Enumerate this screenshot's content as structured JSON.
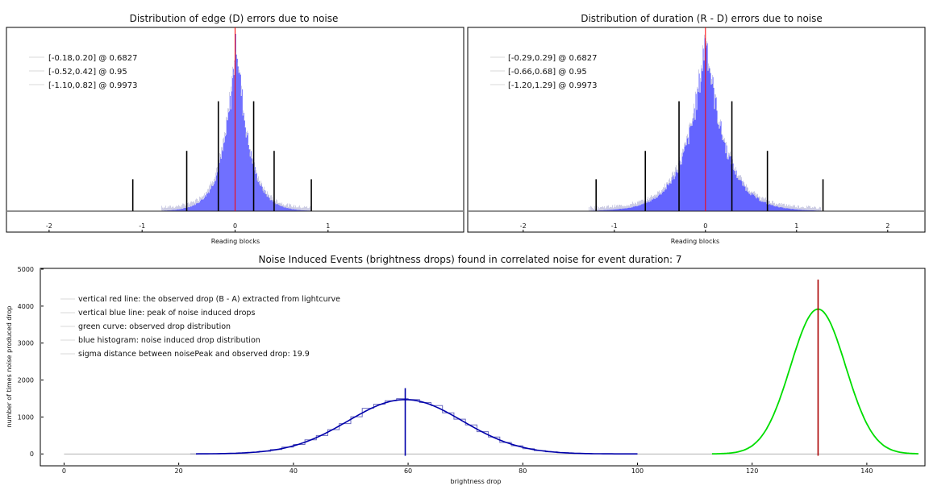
{
  "chart_data": [
    {
      "type": "bar",
      "title": "Distribution of edge (D) errors due to noise",
      "xlabel": "Reading blocks",
      "ylabel": "",
      "xlim": [
        -2.45,
        2.45
      ],
      "x_ticks": [
        -2,
        -1,
        0,
        1
      ],
      "histogram": {
        "center": 0.01,
        "sigma": 0.19,
        "peak": 1.0,
        "color": "#6464ff",
        "shape": "laplacian"
      },
      "center_line": {
        "x": 0.0,
        "color": "#ff0000"
      },
      "markers": [
        {
          "x": -0.18,
          "height": 0.62
        },
        {
          "x": 0.2,
          "height": 0.62
        },
        {
          "x": -0.52,
          "height": 0.34
        },
        {
          "x": 0.42,
          "height": 0.34
        },
        {
          "x": -1.1,
          "height": 0.18
        },
        {
          "x": 0.82,
          "height": 0.18
        }
      ],
      "legend": [
        {
          "label": "[-0.18,0.20] @ 0.6827"
        },
        {
          "label": "[-0.52,0.42] @ 0.95"
        },
        {
          "label": "[-1.10,0.82] @ 0.9973"
        }
      ],
      "legend_position": "top-left",
      "grid": false
    },
    {
      "type": "bar",
      "title": "Distribution of duration (R - D) errors due to noise",
      "xlabel": "Reading blocks",
      "ylabel": "",
      "xlim": [
        -2.6,
        2.4
      ],
      "x_ticks": [
        -2,
        -1,
        0,
        1,
        2
      ],
      "histogram": {
        "center": 0.0,
        "sigma": 0.3,
        "peak": 1.0,
        "color": "#6464ff",
        "shape": "laplacian"
      },
      "center_line": {
        "x": 0.0,
        "color": "#ff0000"
      },
      "markers": [
        {
          "x": -0.29,
          "height": 0.62
        },
        {
          "x": 0.29,
          "height": 0.62
        },
        {
          "x": -0.66,
          "height": 0.34
        },
        {
          "x": 0.68,
          "height": 0.34
        },
        {
          "x": -1.2,
          "height": 0.18
        },
        {
          "x": 1.29,
          "height": 0.18
        }
      ],
      "legend": [
        {
          "label": "[-0.29,0.29] @ 0.6827"
        },
        {
          "label": "[-0.66,0.68] @ 0.95"
        },
        {
          "label": "[-1.20,1.29] @ 0.9973"
        }
      ],
      "legend_position": "top-left",
      "grid": false
    },
    {
      "type": "line",
      "title": "Noise Induced Events (brightness drops) found in correlated noise for event duration: 7",
      "xlabel": "brightness drop",
      "ylabel": "number of times noise produced drop",
      "xlim": [
        -4,
        150
      ],
      "ylim": [
        -300,
        5000
      ],
      "x_ticks": [
        0,
        20,
        40,
        60,
        80,
        100,
        120,
        140
      ],
      "y_ticks": [
        0,
        1000,
        2000,
        3000,
        4000,
        5000
      ],
      "series": [
        {
          "kind": "histogram",
          "center": 59.5,
          "sigma": 10.0,
          "peak": 1470,
          "range": [
            23,
            100
          ],
          "color": "#0000aa"
        },
        {
          "kind": "curve",
          "center": 131.5,
          "sigma": 4.8,
          "peak": 3920,
          "range": [
            113,
            149
          ],
          "color": "#00dd00"
        }
      ],
      "vlines": [
        {
          "x": 59.5,
          "ymin": -50,
          "ymax": 1780,
          "color": "#0000aa"
        },
        {
          "x": 131.5,
          "ymin": -50,
          "ymax": 4720,
          "color": "#aa0000"
        }
      ],
      "legend": [
        {
          "label": "vertical red line: the observed drop (B - A) extracted from lightcurve"
        },
        {
          "label": "vertical blue line: peak of noise induced drops"
        },
        {
          "label": "green curve: observed drop distribution"
        },
        {
          "label": "blue histogram: noise induced drop distribution"
        },
        {
          "label": "sigma distance between noisePeak and observed drop: 19.9"
        }
      ],
      "legend_position": "top-left",
      "grid": false
    }
  ]
}
